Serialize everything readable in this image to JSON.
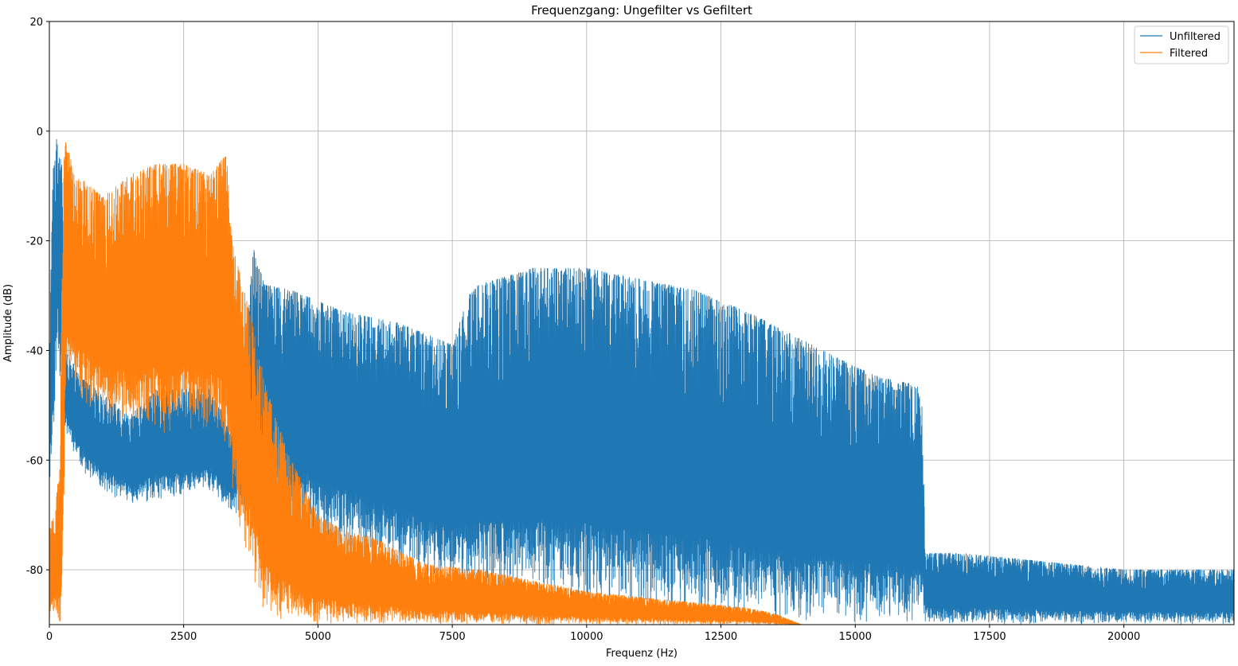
{
  "chart_data": {
    "type": "line",
    "title": "Frequenzgang: Ungefilter vs Gefiltert",
    "xlabel": "Frequenz (Hz)",
    "ylabel": "Amplitude (dB)",
    "xlim": [
      0,
      22050
    ],
    "ylim": [
      -90,
      20
    ],
    "xticks": [
      0,
      2500,
      5000,
      7500,
      10000,
      12500,
      15000,
      17500,
      20000
    ],
    "yticks": [
      20,
      0,
      -20,
      -40,
      -60,
      -80
    ],
    "grid": true,
    "legend_position": "top-right",
    "series": [
      {
        "name": "Unfiltered",
        "color": "#1f77b4",
        "envelope": {
          "x": [
            0,
            60,
            100,
            140,
            180,
            230,
            300,
            600,
            1000,
            1500,
            2000,
            2500,
            3000,
            3400,
            3700,
            3800,
            4000,
            4500,
            5000,
            5500,
            6000,
            6500,
            7000,
            7500,
            7800,
            8000,
            9000,
            10000,
            11000,
            12000,
            13000,
            14000,
            15000,
            15500,
            16000,
            16250,
            16300,
            17000,
            18000,
            19000,
            20000,
            21000,
            22050
          ],
          "upper": [
            -42,
            -8,
            -4,
            -1,
            -4,
            -6,
            -40,
            -45,
            -48,
            -52,
            -47,
            -47,
            -47,
            -55,
            -33,
            -21,
            -28,
            -29,
            -31,
            -33,
            -34,
            -35,
            -37,
            -39,
            -30,
            -28,
            -25,
            -25,
            -27,
            -29,
            -33,
            -38,
            -43,
            -45,
            -46,
            -47,
            -77,
            -77,
            -78,
            -79,
            -80,
            -80,
            -80
          ],
          "lower": [
            -65,
            -60,
            -50,
            -40,
            -45,
            -50,
            -55,
            -62,
            -66,
            -68,
            -68,
            -67,
            -66,
            -70,
            -70,
            -70,
            -70,
            -72,
            -74,
            -76,
            -78,
            -80,
            -82,
            -83,
            -84,
            -85,
            -86,
            -87,
            -88,
            -89,
            -90,
            -90,
            -90,
            -90,
            -90,
            -90,
            -90,
            -90,
            -90,
            -90,
            -90,
            -90,
            -90
          ]
        }
      },
      {
        "name": "Filtered",
        "color": "#ff7f0e",
        "envelope": {
          "x": [
            0,
            100,
            200,
            250,
            300,
            500,
            1000,
            1500,
            2000,
            2500,
            3000,
            3300,
            3400,
            3600,
            3800,
            4000,
            4200,
            4500,
            5000,
            5500,
            6000,
            7000,
            8000,
            9000,
            10000,
            11000,
            12000,
            13000,
            13500,
            14000
          ],
          "upper": [
            -72,
            -70,
            -60,
            -8,
            -2,
            -8,
            -12,
            -8,
            -6,
            -6,
            -8,
            -4,
            -20,
            -28,
            -36,
            -45,
            -52,
            -60,
            -70,
            -73,
            -74,
            -79,
            -80,
            -82,
            -84,
            -85,
            -86,
            -87,
            -88,
            -90
          ],
          "lower": [
            -90,
            -90,
            -90,
            -85,
            -45,
            -50,
            -52,
            -55,
            -55,
            -55,
            -55,
            -58,
            -65,
            -75,
            -82,
            -88,
            -90,
            -90,
            -90,
            -90,
            -90,
            -90,
            -90,
            -90,
            -90,
            -90,
            -90,
            -90,
            -90,
            -90
          ]
        }
      }
    ]
  }
}
